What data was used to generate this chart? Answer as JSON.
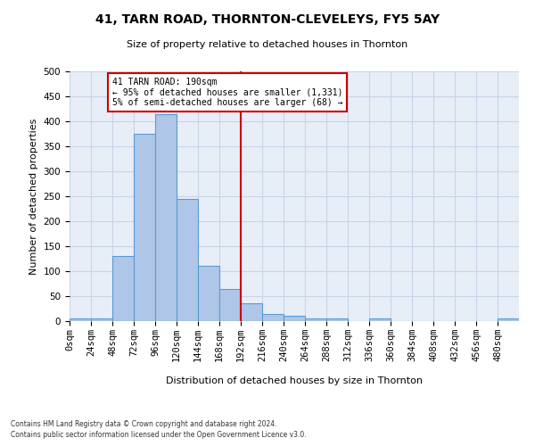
{
  "title": "41, TARN ROAD, THORNTON-CLEVELEYS, FY5 5AY",
  "subtitle": "Size of property relative to detached houses in Thornton",
  "xlabel": "Distribution of detached houses by size in Thornton",
  "ylabel": "Number of detached properties",
  "bin_edges": [
    0,
    24,
    48,
    72,
    96,
    120,
    144,
    168,
    192,
    216,
    240,
    264,
    288,
    312,
    336,
    360,
    384,
    408,
    432,
    456,
    480,
    504
  ],
  "bar_heights": [
    5,
    5,
    130,
    375,
    415,
    245,
    110,
    65,
    35,
    15,
    10,
    5,
    5,
    0,
    5,
    0,
    0,
    0,
    0,
    0,
    5
  ],
  "bar_color": "#aec6e8",
  "bar_edge_color": "#5b9bd5",
  "vline_x": 192,
  "vline_color": "#cc0000",
  "annotation_text": "41 TARN ROAD: 190sqm\n← 95% of detached houses are smaller (1,331)\n5% of semi-detached houses are larger (68) →",
  "annotation_box_color": "#ffffff",
  "annotation_box_edge": "#cc0000",
  "ylim": [
    0,
    500
  ],
  "yticks": [
    0,
    50,
    100,
    150,
    200,
    250,
    300,
    350,
    400,
    450,
    500
  ],
  "xtick_labels": [
    "0sqm",
    "24sqm",
    "48sqm",
    "72sqm",
    "96sqm",
    "120sqm",
    "144sqm",
    "168sqm",
    "192sqm",
    "216sqm",
    "240sqm",
    "264sqm",
    "288sqm",
    "312sqm",
    "336sqm",
    "360sqm",
    "384sqm",
    "408sqm",
    "432sqm",
    "456sqm",
    "480sqm"
  ],
  "grid_color": "#c8d4e8",
  "bg_color": "#e8eef8",
  "footer_line1": "Contains HM Land Registry data © Crown copyright and database right 2024.",
  "footer_line2": "Contains public sector information licensed under the Open Government Licence v3.0."
}
